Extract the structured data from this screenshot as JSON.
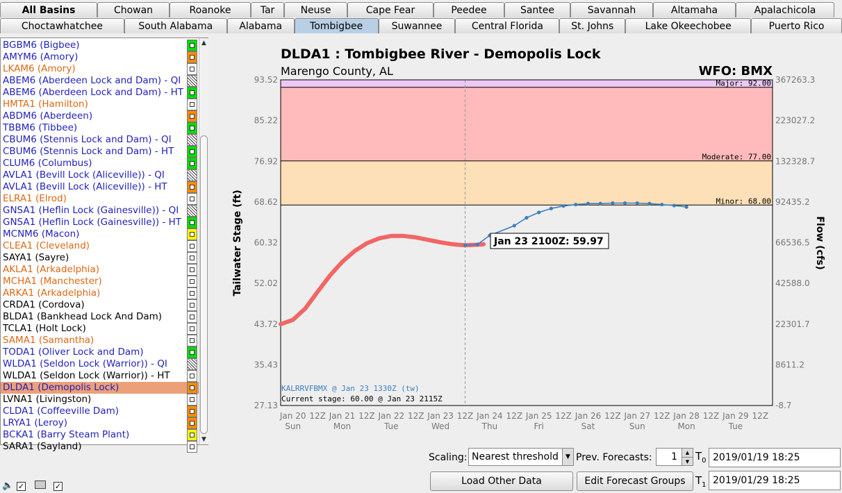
{
  "tabs_row1": [
    "All Basins",
    "Chowan",
    "Roanoke",
    "Tar",
    "Neuse",
    "Cape Fear",
    "Peedee",
    "Santee",
    "Savannah",
    "Altamaha",
    "Apalachicola"
  ],
  "tabs_row2": [
    "Choctawhatchee",
    "South Alabama",
    "Alabama",
    "Tombigbee",
    "Suwannee",
    "Central Florida",
    "St. Johns",
    "Lake Okeechobee",
    "Puerto Rico"
  ],
  "selected_tab": "Tombigbee",
  "station_list": [
    {
      "label": "BGBM6 (Bigbee)",
      "color": "#2222bb",
      "status": "g"
    },
    {
      "label": "AMYM6 (Amory)",
      "color": "#2222bb",
      "status": "o"
    },
    {
      "label": "LKAM6 (Amory)",
      "color": "#dd6611",
      "status": "w"
    },
    {
      "label": "ABEM6 (Aberdeen Lock and Dam) - QI",
      "color": "#2222bb",
      "status": "h"
    },
    {
      "label": "ABEM6 (Aberdeen Lock and Dam) - HT",
      "color": "#2222bb",
      "status": "g"
    },
    {
      "label": "HMTA1 (Hamilton)",
      "color": "#dd6611",
      "status": "w"
    },
    {
      "label": "ABDM6 (Aberdeen)",
      "color": "#2222bb",
      "status": "o"
    },
    {
      "label": "TBBM6 (Tibbee)",
      "color": "#2222bb",
      "status": "g"
    },
    {
      "label": "CBUM6 (Stennis Lock and Dam) - QI",
      "color": "#2222bb",
      "status": "h"
    },
    {
      "label": "CBUM6 (Stennis Lock and Dam) - HT",
      "color": "#2222bb",
      "status": "g"
    },
    {
      "label": "CLUM6 (Columbus)",
      "color": "#2222bb",
      "status": "g"
    },
    {
      "label": "AVLA1 (Bevill Lock (Aliceville)) - QI",
      "color": "#2222bb",
      "status": "h"
    },
    {
      "label": "AVLA1 (Bevill Lock (Aliceville)) - HT",
      "color": "#2222bb",
      "status": "o"
    },
    {
      "label": "ELRA1 (Elrod)",
      "color": "#dd6611",
      "status": "w"
    },
    {
      "label": "GNSA1 (Heflin Lock (Gainesville)) - QI",
      "color": "#2222bb",
      "status": "h"
    },
    {
      "label": "GNSA1 (Heflin Lock (Gainesville)) - HT",
      "color": "#2222bb",
      "status": "g"
    },
    {
      "label": "MCNM6 (Macon)",
      "color": "#2222bb",
      "status": "y"
    },
    {
      "label": "CLEA1 (Cleveland)",
      "color": "#dd6611",
      "status": "w"
    },
    {
      "label": "SAYA1 (Sayre)",
      "color": "#000000",
      "status": "w"
    },
    {
      "label": "AKLA1 (Arkadelphia)",
      "color": "#dd6611",
      "status": "w"
    },
    {
      "label": "MCHA1 (Manchester)",
      "color": "#dd6611",
      "status": "w"
    },
    {
      "label": "ARKA1 (Arkadelphia)",
      "color": "#dd6611",
      "status": "w"
    },
    {
      "label": "CRDA1 (Cordova)",
      "color": "#000000",
      "status": "w"
    },
    {
      "label": "BLDA1 (Bankhead Lock And Dam)",
      "color": "#000000",
      "status": "w"
    },
    {
      "label": "TCLA1 (Holt Lock)",
      "color": "#000000",
      "status": "w"
    },
    {
      "label": "SAMA1 (Samantha)",
      "color": "#dd6611",
      "status": "w"
    },
    {
      "label": "TODA1 (Oliver Lock and Dam)",
      "color": "#2222bb",
      "status": "g"
    },
    {
      "label": "WLDA1 (Seldon Lock (Warrior)) - QI",
      "color": "#2222bb",
      "status": "h"
    },
    {
      "label": "WLDA1 (Seldon Lock (Warrior)) - HT",
      "color": "#000000",
      "status": "w"
    },
    {
      "label": "DLDA1 (Demopolis Lock)",
      "color": "#2222bb",
      "status": "o",
      "selected": true
    },
    {
      "label": "LVNA1 (Livingston)",
      "color": "#000000",
      "status": "w"
    },
    {
      "label": "CLDA1 (Coffeeville Dam)",
      "color": "#2222bb",
      "status": "o"
    },
    {
      "label": "LRYA1 (Leroy)",
      "color": "#2222bb",
      "status": "o"
    },
    {
      "label": "BCKA1 (Barry Steam Plant)",
      "color": "#2222bb",
      "status": "y"
    },
    {
      "label": "SARA1 (Sayland)",
      "color": "#000000",
      "status": "w"
    }
  ],
  "chart": {
    "title": "DLDA1 : Tombigbee River - Demopolis Lock",
    "subtitle": "Marengo County, AL",
    "wfo": "WFO: BMX",
    "hover_label": "Jan 23 2100Z: 59.97",
    "source_label": "KALRRVFBMX @ Jan 23 1330Z (tw)",
    "current_stage_label": "Current stage: 60.00 @ Jan 23 2115Z"
  },
  "chart_data": {
    "type": "line",
    "title": "DLDA1 : Tombigbee River - Demopolis Lock",
    "ylabel": "Tailwater Stage (ft)",
    "y2label": "Flow (cfs)",
    "ylim": [
      27.13,
      93.52
    ],
    "yticks": [
      "93.52",
      "85.22",
      "76.92",
      "68.62",
      "60.32",
      "52.02",
      "43.72",
      "35.43",
      "27.13"
    ],
    "y2ticks": [
      "367263.3",
      "223027.2",
      "132328.7",
      "92435.2",
      "66536.5",
      "42588.0",
      "22301.7",
      "8611.2",
      "-8.7"
    ],
    "xticks_hours": [
      "Jan 20",
      "12Z",
      "Jan 21",
      "12Z",
      "Jan 22",
      "12Z",
      "Jan 23",
      "12Z",
      "Jan 24",
      "12Z",
      "Jan 25",
      "12Z",
      "Jan 26",
      "12Z",
      "Jan 27",
      "12Z",
      "Jan 28",
      "12Z",
      "Jan 29",
      "12Z"
    ],
    "xticks_days": [
      "Sun",
      "Mon",
      "Tue",
      "Wed",
      "Thu",
      "Fri",
      "Sat",
      "Sun",
      "Mon",
      "Tue"
    ],
    "thresholds": [
      {
        "name": "Major",
        "label": "Major: 92.00",
        "value": 92.0,
        "color": "#ecc8f4"
      },
      {
        "name": "Moderate",
        "label": "Moderate: 77.00",
        "value": 77.0,
        "color": "#ffbbbb"
      },
      {
        "name": "Minor",
        "label": "Minor: 68.00",
        "value": 68.0,
        "color": "#fde0b8"
      }
    ],
    "series": [
      {
        "name": "observed",
        "color": "#f26666",
        "x": [
          "Jan 19 18Z",
          "Jan 20 00Z",
          "Jan 20 06Z",
          "Jan 20 12Z",
          "Jan 20 18Z",
          "Jan 21 00Z",
          "Jan 21 06Z",
          "Jan 21 12Z",
          "Jan 21 18Z",
          "Jan 22 00Z",
          "Jan 22 06Z",
          "Jan 22 12Z",
          "Jan 22 18Z",
          "Jan 23 00Z",
          "Jan 23 06Z",
          "Jan 23 12Z",
          "Jan 23 18Z",
          "Jan 23 21Z"
        ],
        "values": [
          43.7,
          44.6,
          46.9,
          50.3,
          53.6,
          56.4,
          58.6,
          60.2,
          61.2,
          61.7,
          61.7,
          61.4,
          60.9,
          60.4,
          60.0,
          59.8,
          59.9,
          60.0
        ]
      },
      {
        "name": "forecast",
        "color": "#3c7fc0",
        "x": [
          "Jan 23 12Z",
          "Jan 23 18Z",
          "Jan 24 00Z",
          "Jan 24 12Z",
          "Jan 24 18Z",
          "Jan 25 00Z",
          "Jan 25 06Z",
          "Jan 25 12Z",
          "Jan 25 18Z",
          "Jan 26 00Z",
          "Jan 26 06Z",
          "Jan 26 12Z",
          "Jan 26 18Z",
          "Jan 27 00Z",
          "Jan 27 06Z",
          "Jan 27 12Z",
          "Jan 27 18Z",
          "Jan 28 00Z"
        ],
        "values": [
          59.8,
          59.97,
          61.8,
          63.8,
          65.4,
          66.5,
          67.3,
          67.8,
          68.1,
          68.3,
          68.3,
          68.4,
          68.4,
          68.4,
          68.3,
          68.1,
          67.9,
          67.6
        ]
      }
    ]
  },
  "controls": {
    "scaling_label": "Scaling:",
    "scaling_value": "Nearest threshold",
    "prev_forecasts_label": "Prev. Forecasts:",
    "prev_forecasts_value": "1",
    "t0_label": "T",
    "t0_sub": "0",
    "t0_value": "2019/01/19 18:25",
    "t1_label": "T",
    "t1_sub": "1",
    "t1_value": "2019/01/29 18:25",
    "load_button": "Load Other Data",
    "edit_button": "Edit Forecast Groups"
  }
}
